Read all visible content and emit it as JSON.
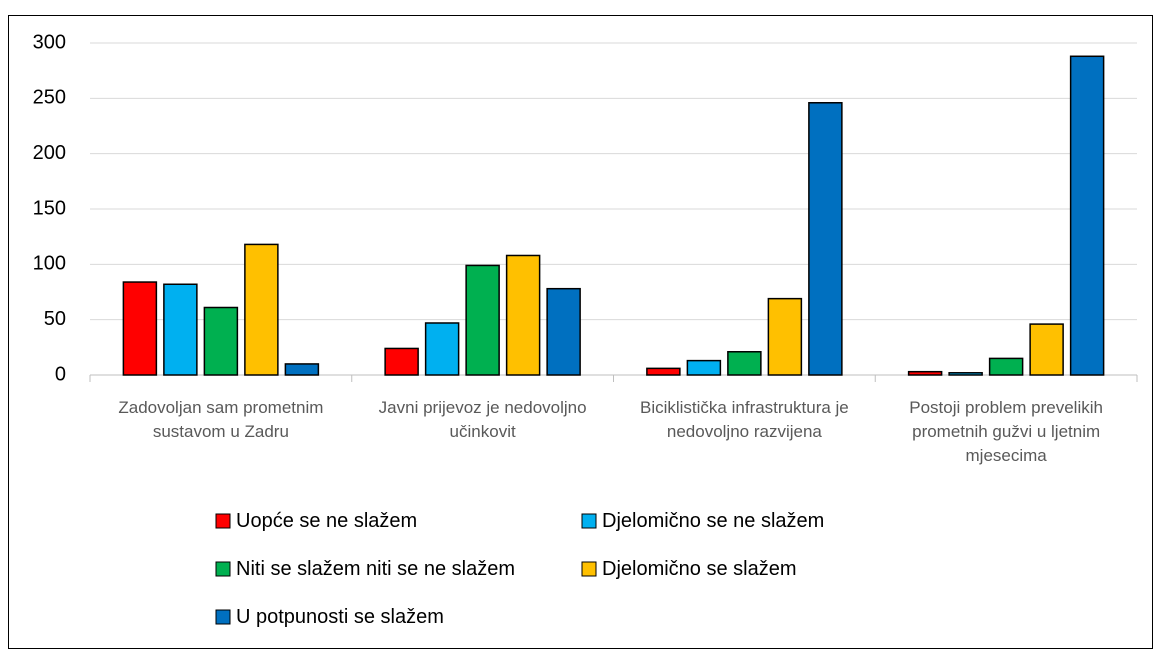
{
  "chart_data": {
    "type": "bar",
    "categories": [
      "Zadovoljan sam prometnim sustavom u Zadru",
      "Javni prijevoz je nedovoljno učinkovit",
      "Biciklistička infrastruktura je nedovoljno razvijena",
      "Postoji problem prevelikih prometnih gužvi u ljetnim mjesecima"
    ],
    "series": [
      {
        "name": "Uopće se ne slažem",
        "color": "#ff0000",
        "values": [
          84,
          24,
          6,
          3
        ]
      },
      {
        "name": "Djelomično se ne slažem",
        "color": "#00b0f0",
        "values": [
          82,
          47,
          13,
          2
        ]
      },
      {
        "name": "Niti se slažem niti se ne slažem",
        "color": "#00b050",
        "values": [
          61,
          99,
          21,
          15
        ]
      },
      {
        "name": "Djelomično se slažem",
        "color": "#ffc000",
        "values": [
          118,
          108,
          69,
          46
        ]
      },
      {
        "name": "U potpunosti se slažem",
        "color": "#0070c0",
        "values": [
          10,
          78,
          246,
          288
        ]
      }
    ],
    "ylim": [
      0,
      300
    ],
    "yticks": [
      0,
      50,
      100,
      150,
      200,
      250,
      300
    ],
    "grid": true,
    "legend": "bottom"
  }
}
